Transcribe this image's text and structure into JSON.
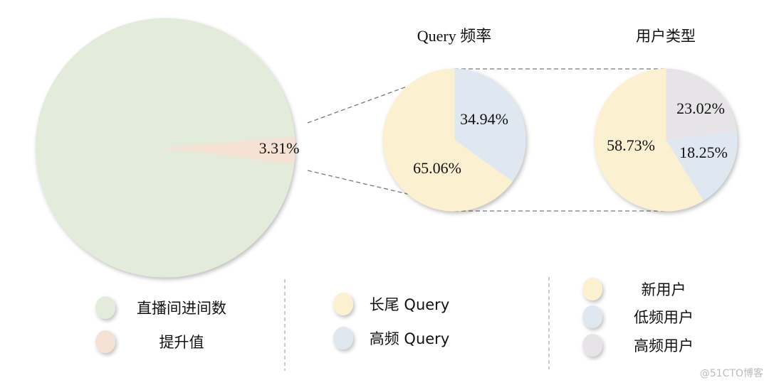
{
  "chart_data": [
    {
      "type": "pie",
      "labels": [
        "直播间进间数",
        "提升值"
      ],
      "values": [
        96.69,
        3.31
      ],
      "data_labels": [
        "",
        "3.31%"
      ],
      "colors": [
        "#e3ecda",
        "#f5e2d5"
      ]
    },
    {
      "type": "pie",
      "title": "Query 频率",
      "labels": [
        "高频 Query",
        "长尾 Query"
      ],
      "values": [
        34.94,
        65.06
      ],
      "data_labels": [
        "34.94%",
        "65.06%"
      ],
      "colors": [
        "#dfe7f1",
        "#fbf0d0"
      ]
    },
    {
      "type": "pie",
      "title": "用户类型",
      "labels": [
        "高频用户",
        "低频用户",
        "新用户"
      ],
      "values": [
        23.02,
        18.25,
        58.73
      ],
      "data_labels": [
        "23.02%",
        "18.25%",
        "58.73%"
      ],
      "colors": [
        "#e7e4e7",
        "#dfe7f1",
        "#fbf0d0"
      ]
    }
  ],
  "legends": [
    {
      "items": [
        {
          "label": "直播间进间数",
          "color": "#e3ecda"
        },
        {
          "label": "提升值",
          "color": "#f5e2d5"
        }
      ]
    },
    {
      "items": [
        {
          "label": "长尾 Query",
          "color": "#fbf0d0"
        },
        {
          "label": "高频 Query",
          "color": "#dfe7f1"
        }
      ]
    },
    {
      "items": [
        {
          "label": "新用户",
          "color": "#fbf0d0"
        },
        {
          "label": "低频用户",
          "color": "#dfe7f1"
        },
        {
          "label": "高频用户",
          "color": "#e7e4e7"
        }
      ]
    }
  ],
  "watermark": "@51CTO博客"
}
